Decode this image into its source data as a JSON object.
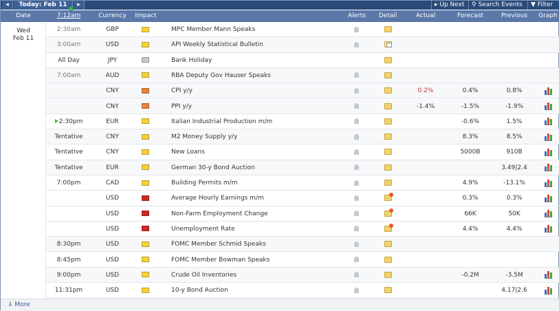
{
  "toolbar": {
    "prev": "◂",
    "today": "Today: Feb 11",
    "next": "▸",
    "up_next": "Up Next",
    "search": "Search Events",
    "filter": "Filter"
  },
  "header": {
    "date": "Date",
    "time": "7:12am",
    "currency": "Currency",
    "impact": "Impact",
    "alerts": "Alerts",
    "detail": "Detail",
    "actual": "Actual",
    "forecast": "Forecast",
    "previous": "Previous",
    "graph": "Graph"
  },
  "date": {
    "day": "Wed",
    "date": "Feb 11"
  },
  "colors": {
    "impact_yellow": "#f5d23a",
    "impact_orange": "#e8843a",
    "impact_red": "#cc2a24",
    "impact_grey": "#c3c7cd",
    "actual_worse": "#d0302a"
  },
  "rows": [
    {
      "time": "2:30am",
      "past": true,
      "currency": "GBP",
      "impact": "yellow",
      "event": "MPC Member Mann Speaks",
      "alert": true,
      "detail": "folder",
      "actual": "",
      "forecast": "",
      "previous": "",
      "graph": false,
      "alt": false
    },
    {
      "time": "3:00am",
      "past": true,
      "currency": "USD",
      "impact": "yellow",
      "event": "API Weekly Statistical Bulletin",
      "alert": true,
      "detail": "doc",
      "actual": "",
      "forecast": "",
      "previous": "",
      "graph": false,
      "alt": true
    },
    {
      "time": "All Day",
      "past": false,
      "currency": "JPY",
      "impact": "grey",
      "event": "Bank Holiday",
      "alert": false,
      "detail": "folder",
      "actual": "",
      "forecast": "",
      "previous": "",
      "graph": false,
      "alt": false
    },
    {
      "time": "7:00am",
      "past": true,
      "currency": "AUD",
      "impact": "yellow",
      "event": "RBA Deputy Gov Hauser Speaks",
      "alert": true,
      "detail": "folder",
      "actual": "",
      "forecast": "",
      "previous": "",
      "graph": false,
      "alt": true
    },
    {
      "time": "",
      "past": false,
      "currency": "CNY",
      "impact": "orange",
      "event": "CPI y/y",
      "alert": true,
      "detail": "folder",
      "actual": "0.2%",
      "actual_color": "red",
      "forecast": "0.4%",
      "previous": "0.8%",
      "graph": true,
      "alt": true
    },
    {
      "time": "",
      "past": false,
      "currency": "CNY",
      "impact": "orange",
      "event": "PPI y/y",
      "alert": true,
      "detail": "folder",
      "actual": "-1.4%",
      "forecast": "-1.5%",
      "previous": "-1.9%",
      "graph": true,
      "alt": true
    },
    {
      "time": "2:30pm",
      "past": false,
      "upcoming": true,
      "currency": "EUR",
      "impact": "yellow",
      "event": "Italian Industrial Production m/m",
      "alert": true,
      "detail": "folder",
      "actual": "",
      "forecast": "-0.6%",
      "previous": "1.5%",
      "graph": true,
      "alt": false
    },
    {
      "time": "Tentative",
      "past": false,
      "currency": "CNY",
      "impact": "yellow",
      "event": "M2 Money Supply y/y",
      "alert": true,
      "detail": "folder",
      "actual": "",
      "forecast": "8.3%",
      "previous": "8.5%",
      "graph": true,
      "alt": true
    },
    {
      "time": "Tentative",
      "past": false,
      "currency": "CNY",
      "impact": "yellow",
      "event": "New Loans",
      "alert": true,
      "detail": "folder",
      "actual": "",
      "forecast": "5000B",
      "previous": "910B",
      "graph": true,
      "alt": false
    },
    {
      "time": "Tentative",
      "past": false,
      "currency": "EUR",
      "impact": "yellow",
      "event": "German 30-y Bond Auction",
      "alert": true,
      "detail": "folder",
      "actual": "",
      "forecast": "",
      "previous": "3.49|2.4",
      "graph": true,
      "alt": true
    },
    {
      "time": "7:00pm",
      "past": false,
      "currency": "CAD",
      "impact": "yellow",
      "event": "Building Permits m/m",
      "alert": true,
      "detail": "folder",
      "actual": "",
      "forecast": "4.9%",
      "previous": "-13.1%",
      "graph": true,
      "alt": false
    },
    {
      "time": "",
      "past": false,
      "currency": "USD",
      "impact": "red",
      "event": "Average Hourly Earnings m/m",
      "alert": true,
      "detail": "star",
      "actual": "",
      "forecast": "0.3%",
      "previous": "0.3%",
      "graph": true,
      "alt": false
    },
    {
      "time": "",
      "past": false,
      "currency": "USD",
      "impact": "red",
      "event": "Non-Farm Employment Change",
      "alert": true,
      "detail": "star",
      "actual": "",
      "forecast": "66K",
      "previous": "50K",
      "graph": true,
      "alt": false
    },
    {
      "time": "",
      "past": false,
      "currency": "USD",
      "impact": "red",
      "event": "Unemployment Rate",
      "alert": true,
      "detail": "star",
      "actual": "",
      "forecast": "4.4%",
      "previous": "4.4%",
      "graph": true,
      "alt": false
    },
    {
      "time": "8:30pm",
      "past": false,
      "currency": "USD",
      "impact": "yellow",
      "event": "FOMC Member Schmid Speaks",
      "alert": true,
      "detail": "folder",
      "actual": "",
      "forecast": "",
      "previous": "",
      "graph": false,
      "alt": true
    },
    {
      "time": "8:45pm",
      "past": false,
      "currency": "USD",
      "impact": "yellow",
      "event": "FOMC Member Bowman Speaks",
      "alert": true,
      "detail": "folder",
      "actual": "",
      "forecast": "",
      "previous": "",
      "graph": false,
      "alt": false
    },
    {
      "time": "9:00pm",
      "past": false,
      "currency": "USD",
      "impact": "yellow",
      "event": "Crude Oil Inventories",
      "alert": true,
      "detail": "folder",
      "actual": "",
      "forecast": "-0.2M",
      "previous": "-3.5M",
      "graph": true,
      "alt": true
    },
    {
      "time": "11:31pm",
      "past": false,
      "currency": "USD",
      "impact": "yellow",
      "event": "10-y Bond Auction",
      "alert": true,
      "detail": "folder",
      "actual": "",
      "forecast": "",
      "previous": "4.17|2.6",
      "graph": true,
      "alt": false
    }
  ],
  "footer": {
    "more": "More"
  }
}
